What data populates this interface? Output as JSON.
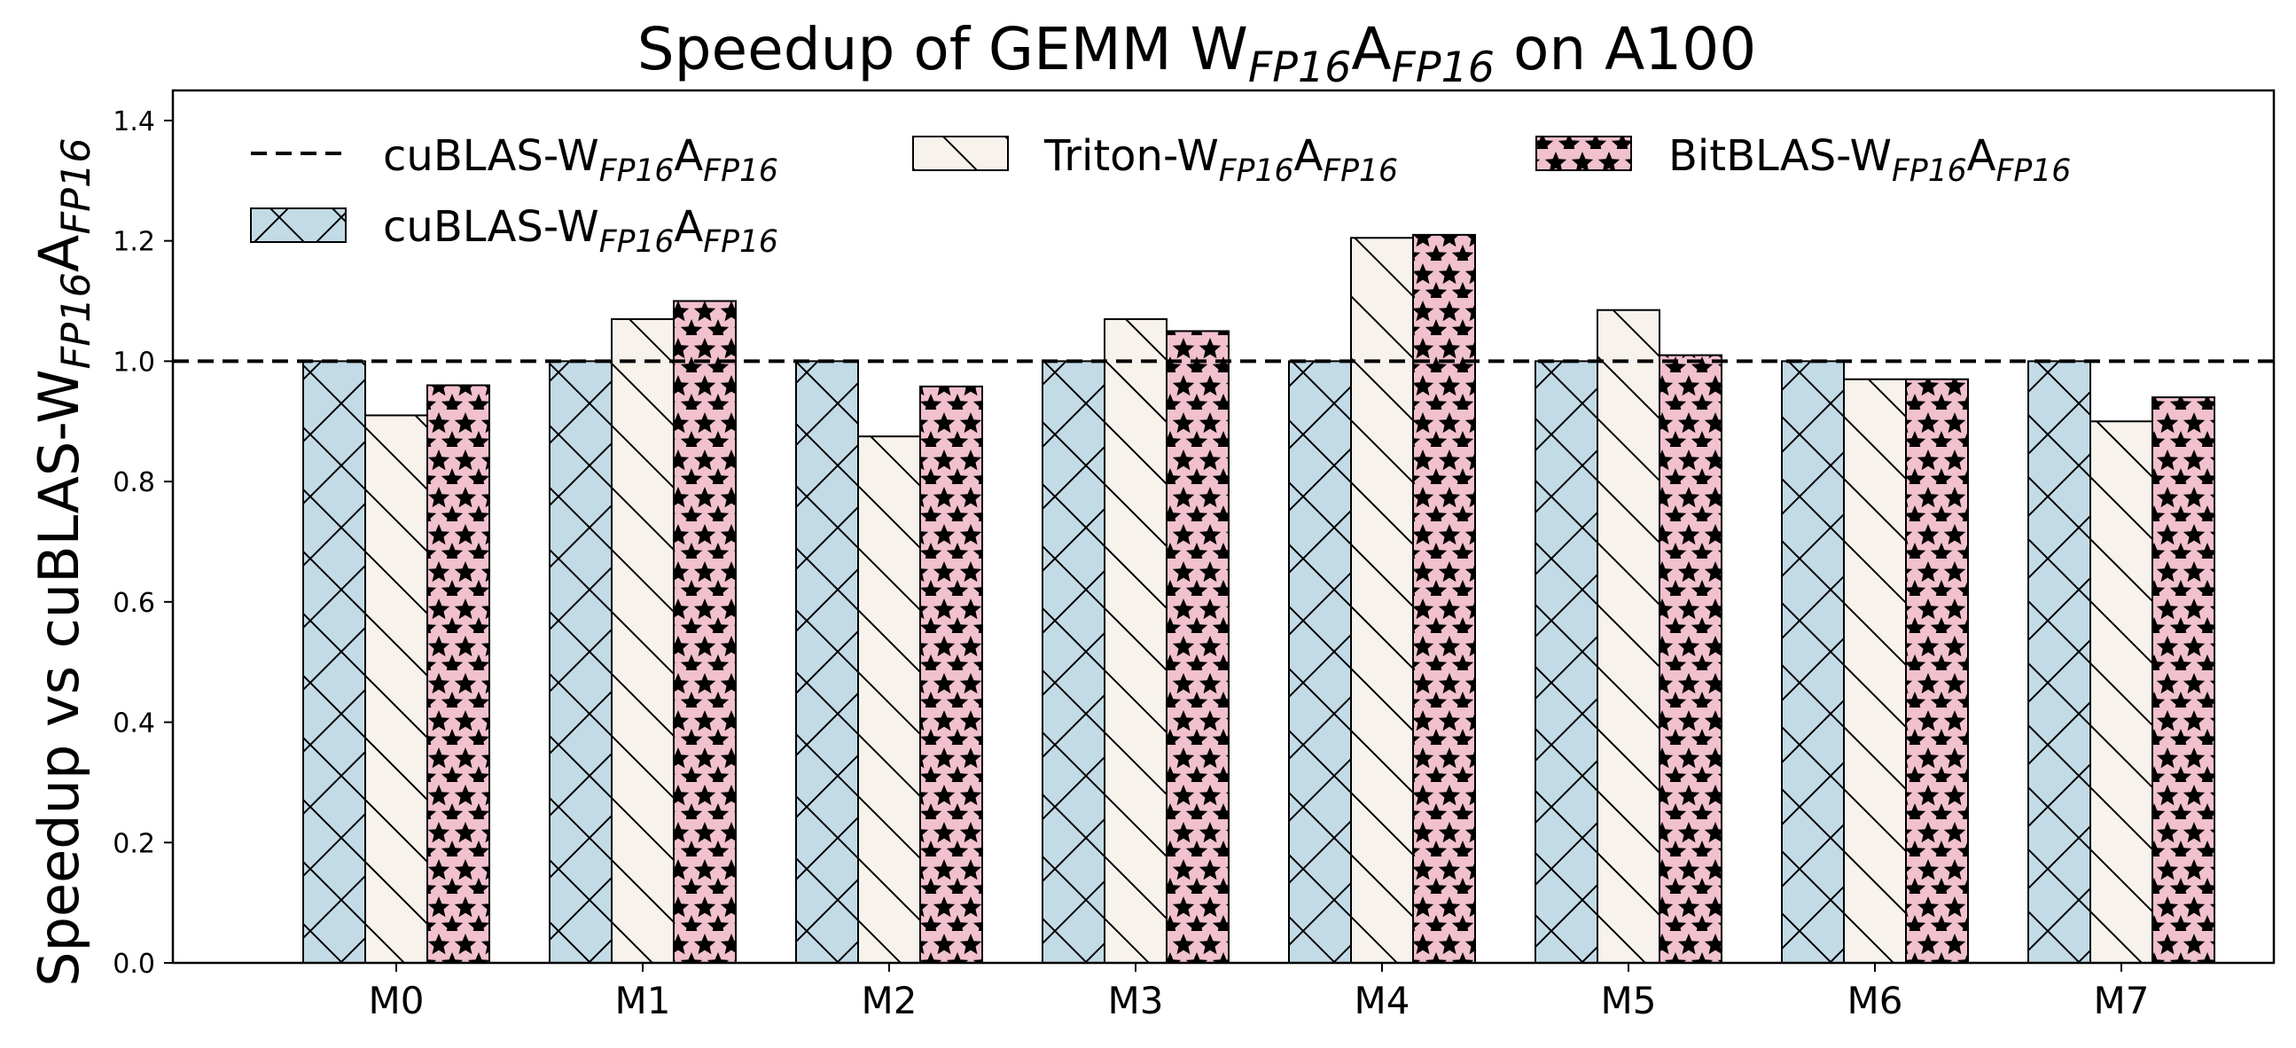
{
  "chart_data": {
    "type": "bar",
    "title": "Speedup of GEMM W",
    "title_sub1": "FP16",
    "title_mid": "A",
    "title_sub2": "FP16",
    "title_end": " on A100",
    "ylabel": "Speedup vs cuBLAS-W",
    "ylabel_sub1": "FP16",
    "ylabel_mid": "A",
    "ylabel_sub2": "FP16",
    "xlabel": "",
    "categories": [
      "M0",
      "M1",
      "M2",
      "M3",
      "M4",
      "M5",
      "M6",
      "M7"
    ],
    "ylim": [
      0,
      1.45
    ],
    "yticks": [
      "0.0",
      "0.2",
      "0.4",
      "0.6",
      "0.8",
      "1.0",
      "1.2",
      "1.4"
    ],
    "reference_line": {
      "value": 1.0,
      "style": "dashed",
      "label": "cuBLAS-W",
      "sub1": "FP16",
      "mid": "A",
      "sub2": "FP16"
    },
    "series": [
      {
        "name": "cuBLAS-W",
        "sub1": "FP16",
        "mid": "A",
        "sub2": "FP16",
        "color": "#c3dbe6",
        "hatch": "cross",
        "values": [
          1.0,
          1.0,
          1.0,
          1.0,
          1.0,
          1.0,
          1.0,
          1.0
        ]
      },
      {
        "name": "Triton-W",
        "sub1": "FP16",
        "mid": "A",
        "sub2": "FP16",
        "color": "#f7f2ec",
        "hatch": "backslash",
        "values": [
          0.91,
          1.07,
          0.875,
          1.07,
          1.205,
          1.085,
          0.97,
          0.9
        ]
      },
      {
        "name": "BitBLAS-W",
        "sub1": "FP16",
        "mid": "A",
        "sub2": "FP16",
        "color": "#f1c1cd",
        "hatch": "star",
        "values": [
          0.96,
          1.1,
          0.958,
          1.05,
          1.21,
          1.01,
          0.97,
          0.94
        ]
      }
    ],
    "grid": false,
    "legend_position": "top-left"
  }
}
